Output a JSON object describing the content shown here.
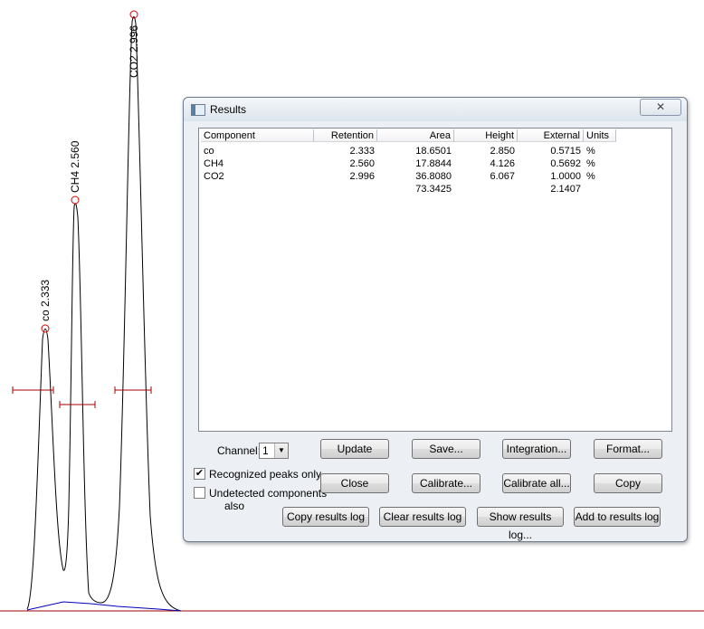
{
  "chart": {
    "peaks": [
      {
        "name": "co",
        "rt": 2.333,
        "label": "co 2.333",
        "height": 2.85
      },
      {
        "name": "CH4",
        "rt": 2.56,
        "label": "CH4 2.560",
        "height": 4.126
      },
      {
        "name": "CO2",
        "rt": 2.996,
        "label": "CO2 2.996",
        "height": 6.067
      }
    ],
    "colors": {
      "trace": "#000000",
      "baseline": "#0000c0",
      "axis": "#a00000",
      "marker": "#e00000"
    }
  },
  "dialog": {
    "title": "Results",
    "close_symbol": "✕",
    "table": {
      "headers": [
        "Component",
        "Retention",
        "Area",
        "Height",
        "External",
        "Units"
      ],
      "rows": [
        [
          "co",
          "2.333",
          "18.6501",
          "2.850",
          "0.5715",
          "%"
        ],
        [
          "CH4",
          "2.560",
          "17.8844",
          "4.126",
          "0.5692",
          "%"
        ],
        [
          "CO2",
          "2.996",
          "36.8080",
          "6.067",
          "1.0000",
          "%"
        ],
        [
          "",
          "",
          "73.3425",
          "",
          "2.1407",
          ""
        ]
      ]
    },
    "channel_label": "Channel:",
    "channel_value": "1",
    "recognized_label": "Recognized peaks only",
    "recognized_checked": "✔",
    "undetected_label": "Undetected components",
    "undetected_label2": "also",
    "buttons": {
      "update": "Update",
      "save": "Save...",
      "integration": "Integration...",
      "format": "Format...",
      "close": "Close",
      "calibrate": "Calibrate...",
      "calibrate_all": "Calibrate all...",
      "copy": "Copy",
      "copy_log": "Copy results log",
      "clear_log": "Clear results log",
      "show_log": "Show results log...",
      "add_log": "Add to results log"
    }
  }
}
